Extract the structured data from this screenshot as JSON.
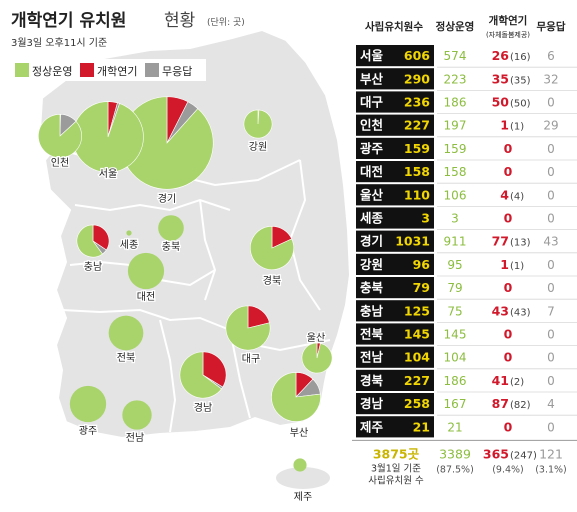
{
  "header": {
    "title": "개학연기 유치원",
    "title_suffix": "현황",
    "unit": "(단위: 곳)",
    "date": "3월3일 오후11시 기준"
  },
  "colors": {
    "normal": "#a9d46c",
    "delayed": "#d2192b",
    "noresponse": "#9b9b9b",
    "map_fill": "#e4e4e4",
    "map_stroke": "#ffffff",
    "region_name_box": "#111111",
    "private_count_text": "#f1d600"
  },
  "legend": {
    "normal": "정상운영",
    "delayed": "개학연기",
    "noresponse": "무응답"
  },
  "table": {
    "headers": {
      "private": "사립유치원수",
      "normal": "정상운영",
      "delayed": "개학연기",
      "delayed_sub": "(자체돌봄제공)",
      "noresponse": "무응답"
    },
    "rows": [
      {
        "region": "서울",
        "private": "606",
        "normal": "574",
        "delayed": "26",
        "care": "(16)",
        "noresponse": "6"
      },
      {
        "region": "부산",
        "private": "290",
        "normal": "223",
        "delayed": "35",
        "care": "(35)",
        "noresponse": "32"
      },
      {
        "region": "대구",
        "private": "236",
        "normal": "186",
        "delayed": "50",
        "care": "(50)",
        "noresponse": "0"
      },
      {
        "region": "인천",
        "private": "227",
        "normal": "197",
        "delayed": "1",
        "care": "(1)",
        "noresponse": "29"
      },
      {
        "region": "광주",
        "private": "159",
        "normal": "159",
        "delayed": "0",
        "care": "",
        "noresponse": "0"
      },
      {
        "region": "대전",
        "private": "158",
        "normal": "158",
        "delayed": "0",
        "care": "",
        "noresponse": "0"
      },
      {
        "region": "울산",
        "private": "110",
        "normal": "106",
        "delayed": "4",
        "care": "(4)",
        "noresponse": "0"
      },
      {
        "region": "세종",
        "private": "3",
        "normal": "3",
        "delayed": "0",
        "care": "",
        "noresponse": "0"
      },
      {
        "region": "경기",
        "private": "1031",
        "normal": "911",
        "delayed": "77",
        "care": "(13)",
        "noresponse": "43"
      },
      {
        "region": "강원",
        "private": "96",
        "normal": "95",
        "delayed": "1",
        "care": "(1)",
        "noresponse": "0"
      },
      {
        "region": "충북",
        "private": "79",
        "normal": "79",
        "delayed": "0",
        "care": "",
        "noresponse": "0"
      },
      {
        "region": "충남",
        "private": "125",
        "normal": "75",
        "delayed": "43",
        "care": "(43)",
        "noresponse": "7"
      },
      {
        "region": "전북",
        "private": "145",
        "normal": "145",
        "delayed": "0",
        "care": "",
        "noresponse": "0"
      },
      {
        "region": "전남",
        "private": "104",
        "normal": "104",
        "delayed": "0",
        "care": "",
        "noresponse": "0"
      },
      {
        "region": "경북",
        "private": "227",
        "normal": "186",
        "delayed": "41",
        "care": "(2)",
        "noresponse": "0"
      },
      {
        "region": "경남",
        "private": "258",
        "normal": "167",
        "delayed": "87",
        "care": "(82)",
        "noresponse": "4"
      },
      {
        "region": "제주",
        "private": "21",
        "normal": "21",
        "delayed": "0",
        "care": "",
        "noresponse": "0"
      }
    ],
    "totals": {
      "private": "3875곳",
      "private_note": [
        "3월1일 기준",
        "사립유치원 수"
      ],
      "normal": "3389",
      "normal_pct": "(87.5%)",
      "delayed": "365",
      "delayed_care": "(247)",
      "delayed_pct": "(9.4%)",
      "noresponse": "121",
      "noresponse_pct": "(3.1%)"
    }
  },
  "chart_data": {
    "type": "pie",
    "title": "개학연기 유치원 현황",
    "unit": "곳",
    "series_names": [
      "정상운영",
      "개학연기",
      "무응답"
    ],
    "regions": [
      {
        "name": "서울",
        "total": 606,
        "normal": 574,
        "delayed": 26,
        "noresponse": 6
      },
      {
        "name": "부산",
        "total": 290,
        "normal": 223,
        "delayed": 35,
        "noresponse": 32
      },
      {
        "name": "대구",
        "total": 236,
        "normal": 186,
        "delayed": 50,
        "noresponse": 0
      },
      {
        "name": "인천",
        "total": 227,
        "normal": 197,
        "delayed": 1,
        "noresponse": 29
      },
      {
        "name": "광주",
        "total": 159,
        "normal": 159,
        "delayed": 0,
        "noresponse": 0
      },
      {
        "name": "대전",
        "total": 158,
        "normal": 158,
        "delayed": 0,
        "noresponse": 0
      },
      {
        "name": "울산",
        "total": 110,
        "normal": 106,
        "delayed": 4,
        "noresponse": 0
      },
      {
        "name": "세종",
        "total": 3,
        "normal": 3,
        "delayed": 0,
        "noresponse": 0
      },
      {
        "name": "경기",
        "total": 1031,
        "normal": 911,
        "delayed": 77,
        "noresponse": 43
      },
      {
        "name": "강원",
        "total": 96,
        "normal": 95,
        "delayed": 1,
        "noresponse": 0
      },
      {
        "name": "충북",
        "total": 79,
        "normal": 79,
        "delayed": 0,
        "noresponse": 0
      },
      {
        "name": "충남",
        "total": 125,
        "normal": 75,
        "delayed": 43,
        "noresponse": 7
      },
      {
        "name": "전북",
        "total": 145,
        "normal": 145,
        "delayed": 0,
        "noresponse": 0
      },
      {
        "name": "전남",
        "total": 104,
        "normal": 104,
        "delayed": 0,
        "noresponse": 0
      },
      {
        "name": "경북",
        "total": 227,
        "normal": 186,
        "delayed": 41,
        "noresponse": 0
      },
      {
        "name": "경남",
        "total": 258,
        "normal": 167,
        "delayed": 87,
        "noresponse": 4
      },
      {
        "name": "제주",
        "total": 21,
        "normal": 21,
        "delayed": 0,
        "noresponse": 0
      }
    ]
  }
}
